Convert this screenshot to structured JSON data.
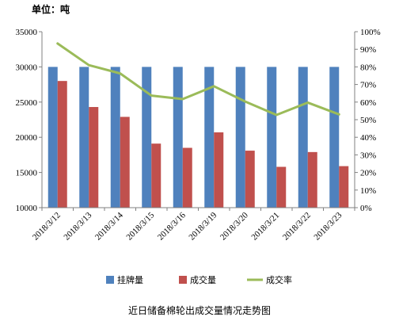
{
  "unit_label": "单位：吨",
  "caption": "近日储备棉轮出成交量情况走势图",
  "colors": {
    "listed": "#4F81BD",
    "traded": "#C0504D",
    "rate": "#9BBB59",
    "axis": "#808080"
  },
  "chart_data": {
    "type": "bar",
    "categories": [
      "2018/3/12",
      "2018/3/13",
      "2018/3/14",
      "2018/3/15",
      "2018/3/16",
      "2018/3/19",
      "2018/3/20",
      "2018/3/21",
      "2018/3/22",
      "2018/3/23"
    ],
    "series": [
      {
        "name": "挂牌量",
        "type": "bar",
        "axis": "left",
        "values": [
          30000,
          30000,
          30000,
          30000,
          30000,
          30000,
          30000,
          30000,
          30000,
          30000
        ]
      },
      {
        "name": "成交量",
        "type": "bar",
        "axis": "left",
        "values": [
          28000,
          24300,
          22900,
          19100,
          18500,
          20700,
          18100,
          15800,
          17900,
          15900
        ]
      },
      {
        "name": "成交率",
        "type": "line",
        "axis": "right",
        "values": [
          93.3,
          81.0,
          76.3,
          63.7,
          61.7,
          69.0,
          60.3,
          52.7,
          59.7,
          53.0
        ]
      }
    ],
    "yleft": {
      "lim": [
        10000,
        35000
      ],
      "ticks": [
        10000,
        15000,
        20000,
        25000,
        30000,
        35000
      ]
    },
    "yright": {
      "lim": [
        0,
        100
      ],
      "ticks": [
        "0%",
        "10%",
        "20%",
        "30%",
        "40%",
        "50%",
        "60%",
        "70%",
        "80%",
        "90%",
        "100%"
      ]
    },
    "legend": [
      "挂牌量",
      "成交量",
      "成交率"
    ],
    "legend_position": "bottom",
    "grid": false
  }
}
